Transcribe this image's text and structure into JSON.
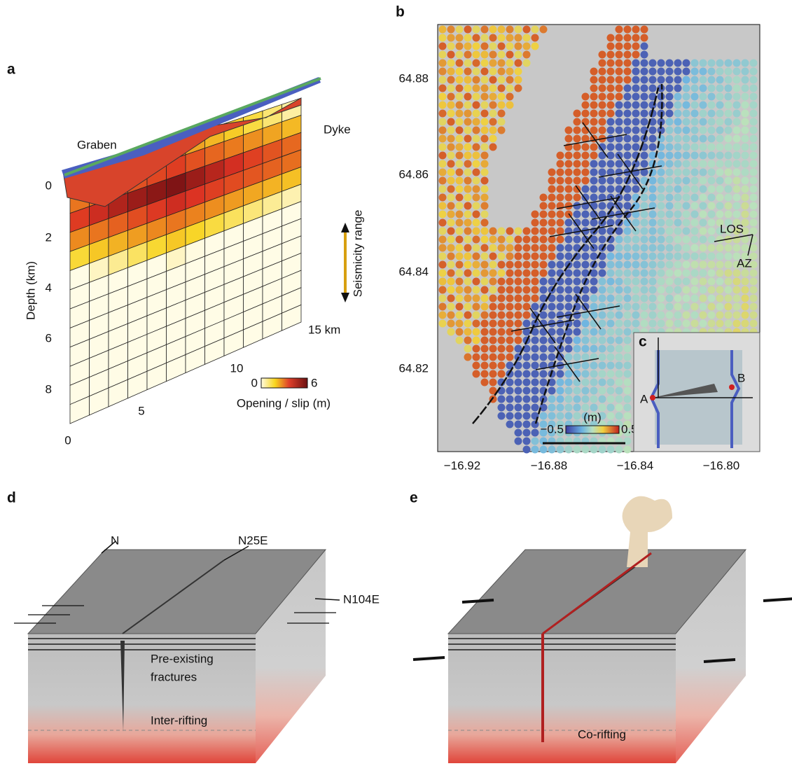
{
  "panel_a": {
    "letter": "a",
    "graben": "Graben",
    "dyke": "Dyke",
    "y_axis": "Depth (km)",
    "seismicity": "Seismicity range",
    "depth_ticks": [
      "0",
      "2",
      "4",
      "6",
      "8"
    ],
    "distance_ticks": [
      "0",
      "5",
      "10",
      "15 km"
    ],
    "colorbar_min": "0",
    "colorbar_max": "6",
    "colorbar_title": "Opening / slip (m)"
  },
  "panel_b": {
    "letter": "b",
    "lat_ticks": [
      "64.88",
      "64.86",
      "64.84",
      "64.82"
    ],
    "lon_ticks": [
      "−16.92",
      "−16.88",
      "−16.84",
      "−16.80"
    ],
    "los": "LOS",
    "az": "AZ",
    "colorbar_unit": "(m)",
    "colorbar_min": "−0.5",
    "colorbar_max": "0.5"
  },
  "panel_c": {
    "letter": "c",
    "point_a": "A",
    "point_b": "B"
  },
  "panel_d": {
    "letter": "d",
    "north": "N",
    "dir_1": "N25E",
    "dir_2": "N104E",
    "label_1": "Pre-existing",
    "label_2": "fractures",
    "label_3": "Inter-rifting"
  },
  "panel_e": {
    "letter": "e",
    "label": "Co-rifting"
  }
}
